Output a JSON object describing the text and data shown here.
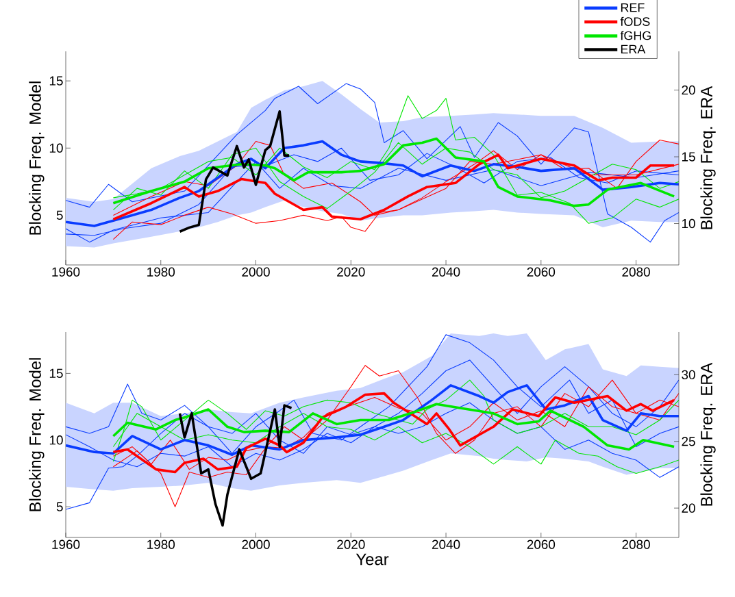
{
  "chart_data": [
    {
      "type": "line",
      "ylabel": "Blocking Freq. Model",
      "y2label": "Blocking Freq. ERA",
      "xlim": [
        1960,
        2089
      ],
      "xticks": [
        1960,
        1980,
        2000,
        2020,
        2040,
        2060,
        2080
      ],
      "ylim": [
        1.3,
        17.2
      ],
      "yticks": [
        5,
        10,
        15
      ],
      "y2lim": [
        6.9,
        22.9
      ],
      "y2ticks": [
        10,
        15,
        20
      ],
      "legend": "top right",
      "series": [
        {
          "name": "REF",
          "color": "#0a3cff",
          "x": [
            1960,
            1966,
            1970,
            1978,
            1984,
            1988,
            1992,
            1996,
            1999,
            2002,
            2006,
            2010,
            2014,
            2018,
            2022,
            2026,
            2031,
            2035,
            2041,
            2046,
            2050,
            2055,
            2060,
            2067,
            2073,
            2079,
            2085,
            2089
          ],
          "values": [
            4.5,
            4.2,
            4.6,
            5.4,
            6.3,
            6.8,
            7.8,
            8.8,
            9.2,
            8.5,
            10.0,
            10.2,
            10.5,
            9.5,
            9.0,
            8.9,
            8.7,
            7.9,
            8.7,
            8.3,
            8.8,
            8.6,
            8.3,
            8.5,
            6.9,
            7.1,
            7.4,
            7.3
          ],
          "upper": [
            6.3,
            6.0,
            6.2,
            8.5,
            9.4,
            9.8,
            10.5,
            11.2,
            13.0,
            13.6,
            14.3,
            14.6,
            15.0,
            14.0,
            12.9,
            11.9,
            12.0,
            12.3,
            12.4,
            12.5,
            12.6,
            12.5,
            12.4,
            12.4,
            11.5,
            10.4,
            10.5,
            10.5
          ],
          "lower": [
            2.7,
            2.6,
            2.9,
            3.4,
            3.8,
            4.1,
            4.5,
            5.0,
            5.2,
            5.6,
            6.1,
            5.6,
            5.3,
            5.1,
            4.6,
            4.8,
            5.0,
            5.0,
            5.2,
            5.3,
            5.4,
            5.2,
            5.1,
            5.0,
            4.1,
            4.6,
            4.5,
            4.5
          ]
        },
        {
          "color": "#0a3cff",
          "x": [
            1960,
            1965,
            1969,
            1974,
            1985,
            1996,
            1998,
            2002,
            2004,
            2009,
            2013,
            2019,
            2022,
            2025,
            2027,
            2031,
            2036,
            2043,
            2046,
            2051,
            2055,
            2060,
            2067,
            2070,
            2074,
            2079,
            2083,
            2086,
            2089
          ],
          "values": [
            6.1,
            5.6,
            7.3,
            6.0,
            6.8,
            11.0,
            11.6,
            12.8,
            13.7,
            14.6,
            13.3,
            14.8,
            14.4,
            13.4,
            10.4,
            11.3,
            9.2,
            11.6,
            9.3,
            11.9,
            10.9,
            8.8,
            11.5,
            11.2,
            5.1,
            4.1,
            3.0,
            4.6,
            5.2
          ]
        },
        {
          "color": "#0a3cff",
          "x": [
            1960,
            1965,
            1970,
            1980,
            1990,
            1996,
            2000,
            2005,
            2010,
            2016,
            2022,
            2030,
            2040,
            2050,
            2060,
            2070,
            2080,
            2089
          ],
          "values": [
            4.0,
            3.0,
            3.9,
            4.8,
            5.2,
            7.5,
            9.0,
            7.0,
            8.5,
            7.2,
            7.0,
            8.5,
            7.6,
            8.4,
            7.2,
            8.2,
            7.8,
            8.3
          ]
        },
        {
          "color": "#0a3cff",
          "x": [
            1960,
            1966,
            1972,
            1980,
            1988,
            1995,
            2003,
            2008,
            2013,
            2018,
            2024,
            2030,
            2036,
            2042,
            2048,
            2055,
            2062,
            2068,
            2074,
            2080,
            2089
          ],
          "values": [
            3.6,
            3.5,
            4.0,
            4.4,
            5.8,
            8.6,
            8.8,
            9.5,
            9.0,
            10.0,
            7.6,
            8.0,
            9.6,
            8.6,
            7.4,
            9.0,
            9.3,
            7.8,
            7.4,
            8.3,
            8.0
          ]
        },
        {
          "color": "#ff0000",
          "x": [
            1970,
            1974,
            1980,
            1985,
            1990,
            1995,
            2000,
            2005,
            2010,
            2015,
            2018,
            2020,
            2023,
            2026,
            2030,
            2035,
            2040,
            2046,
            2050,
            2055,
            2060,
            2065,
            2070,
            2076,
            2080,
            2085,
            2089
          ],
          "values": [
            3.2,
            4.5,
            4.3,
            5.0,
            5.6,
            5.1,
            4.4,
            4.6,
            5.0,
            4.6,
            4.9,
            4.1,
            3.8,
            5.2,
            5.4,
            6.3,
            7.5,
            8.8,
            9.8,
            8.4,
            9.5,
            8.4,
            8.5,
            7.0,
            9.0,
            10.6,
            10.3
          ]
        },
        {
          "color": "#ff0000",
          "x": [
            1970,
            1978,
            1985,
            1990,
            1996,
            2000,
            2003,
            2006,
            2010,
            2016,
            2022,
            2025,
            2030,
            2040,
            2045,
            2050,
            2060,
            2070,
            2080,
            2089
          ],
          "values": [
            5.0,
            6.4,
            7.5,
            7.2,
            8.7,
            10.5,
            10.2,
            8.0,
            7.0,
            7.4,
            6.0,
            5.0,
            5.4,
            7.0,
            9.0,
            8.8,
            9.5,
            8.0,
            8.0,
            8.8
          ]
        },
        {
          "color": "#00e600",
          "x": [
            1970,
            1975,
            1980,
            1985,
            1990,
            1995,
            2000,
            2005,
            2010,
            2015,
            2020,
            2025,
            2028,
            2032,
            2035,
            2038,
            2040,
            2042,
            2046,
            2050,
            2055,
            2060,
            2066,
            2070,
            2075,
            2080,
            2085,
            2089
          ],
          "values": [
            6.3,
            6.6,
            7.0,
            8.0,
            9.0,
            9.3,
            8.0,
            10.0,
            8.6,
            7.8,
            9.0,
            8.4,
            10.0,
            13.9,
            12.2,
            12.8,
            13.7,
            10.6,
            10.8,
            9.5,
            6.5,
            6.7,
            5.9,
            4.4,
            4.8,
            6.2,
            5.6,
            6.2
          ]
        },
        {
          "color": "#00e600",
          "x": [
            1970,
            1975,
            1980,
            1985,
            1990,
            1995,
            2000,
            2005,
            2010,
            2015,
            2020,
            2025,
            2030,
            2035,
            2040,
            2045,
            2050,
            2055,
            2060,
            2065,
            2070,
            2075,
            2080,
            2085,
            2089
          ],
          "values": [
            5.4,
            7.0,
            6.5,
            8.3,
            7.0,
            9.5,
            10.0,
            7.5,
            6.4,
            5.5,
            6.8,
            8.2,
            10.4,
            8.8,
            10.0,
            9.7,
            8.4,
            8.0,
            6.3,
            6.8,
            7.8,
            8.8,
            8.4,
            7.0,
            7.5
          ]
        },
        {
          "name": "fODS",
          "color": "#ff0000",
          "x": [
            1970,
            1978,
            1985,
            1988,
            1992,
            1997,
            2002,
            2004,
            2010,
            2014,
            2016,
            2022,
            2027,
            2032,
            2036,
            2042,
            2047,
            2051,
            2053,
            2060,
            2067,
            2072,
            2075,
            2080,
            2083,
            2088
          ],
          "values": [
            4.7,
            5.9,
            7.1,
            6.4,
            6.8,
            7.7,
            7.4,
            6.6,
            5.4,
            5.6,
            4.9,
            4.7,
            5.4,
            6.4,
            7.1,
            7.4,
            8.8,
            9.5,
            8.5,
            9.2,
            8.7,
            7.6,
            7.8,
            7.8,
            8.7,
            8.7
          ]
        },
        {
          "name": "fGHG",
          "color": "#00e600",
          "x": [
            1970,
            1978,
            1985,
            1990,
            1997,
            2002,
            2004,
            2008,
            2011,
            2018,
            2022,
            2027,
            2031,
            2035,
            2038,
            2042,
            2048,
            2051,
            2055,
            2062,
            2067,
            2070,
            2074,
            2081,
            2088
          ],
          "values": [
            5.9,
            6.8,
            7.5,
            8.5,
            8.8,
            8.7,
            8.5,
            7.6,
            8.2,
            8.2,
            8.3,
            8.8,
            10.2,
            10.4,
            10.7,
            9.3,
            9.0,
            7.1,
            6.4,
            6.1,
            5.7,
            5.8,
            6.9,
            7.4,
            6.4
          ]
        },
        {
          "name": "ERA",
          "color": "#000000",
          "axis": "y2",
          "x": [
            1984,
            1986,
            1988,
            1989.5,
            1991,
            1994,
            1996,
            1997.5,
            1998.5,
            2000,
            2002,
            2003,
            2005,
            2006,
            2007
          ],
          "values": [
            9.4,
            9.7,
            9.9,
            13.3,
            14.2,
            13.6,
            15.8,
            14.2,
            14.8,
            12.9,
            15.5,
            15.8,
            18.4,
            15.1,
            15.1
          ]
        }
      ]
    },
    {
      "type": "line",
      "xlabel": "Year",
      "ylabel": "Blocking Freq. Model",
      "y2label": "Blocking Freq. ERA",
      "xlim": [
        1960,
        2089
      ],
      "xticks": [
        1960,
        1980,
        2000,
        2020,
        2040,
        2060,
        2080
      ],
      "ylim": [
        2.7,
        18.1
      ],
      "yticks": [
        5,
        10,
        15
      ],
      "y2lim": [
        17.8,
        33.2
      ],
      "y2ticks": [
        20,
        25,
        30
      ],
      "series": [
        {
          "color": "#0a3cff",
          "x": [
            1960,
            1966,
            1970,
            1974,
            1980,
            1985,
            1990,
            1995,
            1999,
            2005,
            2010,
            2017,
            2022,
            2027,
            2031,
            2037,
            2041,
            2047,
            2050,
            2053,
            2057,
            2061,
            2065,
            2070,
            2073,
            2078,
            2081,
            2085,
            2089
          ],
          "values": [
            9.6,
            9.1,
            9.0,
            10.3,
            9.3,
            10.0,
            9.6,
            8.9,
            9.6,
            9.3,
            10.0,
            10.2,
            10.4,
            11.0,
            11.5,
            13.0,
            14.1,
            13.3,
            12.8,
            13.6,
            14.1,
            12.3,
            12.6,
            13.3,
            11.5,
            10.7,
            12.0,
            11.8,
            11.8
          ],
          "upper": [
            12.8,
            12.0,
            12.8,
            12.8,
            11.8,
            12.0,
            12.3,
            12.1,
            12.0,
            12.8,
            13.2,
            13.7,
            13.9,
            14.6,
            15.1,
            16.3,
            18.0,
            17.8,
            18.0,
            17.8,
            18.0,
            16.0,
            16.8,
            17.2,
            15.3,
            14.8,
            15.6,
            15.5,
            15.4
          ],
          "lower": [
            6.5,
            6.3,
            6.2,
            6.4,
            6.5,
            6.6,
            6.8,
            6.4,
            6.2,
            6.6,
            6.8,
            7.0,
            6.8,
            7.3,
            7.7,
            8.5,
            9.0,
            8.8,
            8.6,
            8.5,
            8.4,
            8.7,
            8.6,
            8.4,
            8.0,
            7.4,
            7.6,
            7.9,
            7.9
          ]
        },
        {
          "color": "#0a3cff",
          "x": [
            1960,
            1965,
            1969,
            1972,
            1975,
            1980,
            1985,
            1990,
            1995,
            2000,
            2005,
            2008,
            2012,
            2018,
            2022,
            2028,
            2032,
            2036,
            2040,
            2045,
            2050,
            2055,
            2060,
            2066,
            2070,
            2075,
            2080,
            2085,
            2089
          ],
          "values": [
            4.8,
            5.3,
            7.9,
            8.0,
            8.8,
            10.5,
            12.0,
            11.0,
            9.0,
            11.0,
            12.2,
            13.0,
            10.5,
            10.0,
            11.0,
            12.5,
            14.0,
            15.5,
            17.9,
            17.3,
            16.0,
            14.0,
            12.5,
            14.5,
            12.0,
            13.0,
            9.5,
            10.5,
            11.0
          ]
        },
        {
          "color": "#0a3cff",
          "x": [
            1960,
            1965,
            1969,
            1973,
            1976,
            1980,
            1985,
            1990,
            1995,
            2000,
            2005,
            2010,
            2015,
            2020,
            2025,
            2030,
            2035,
            2040,
            2045,
            2050,
            2055,
            2060,
            2065,
            2070,
            2075,
            2080,
            2085,
            2089
          ],
          "values": [
            11.0,
            10.5,
            11.0,
            14.2,
            12.0,
            11.5,
            12.6,
            11.0,
            10.5,
            12.0,
            10.0,
            9.0,
            11.0,
            10.4,
            11.0,
            12.0,
            13.5,
            15.2,
            16.0,
            14.0,
            12.0,
            14.0,
            15.5,
            14.0,
            12.0,
            11.0,
            12.5,
            14.5
          ]
        },
        {
          "color": "#0a3cff",
          "x": [
            1960,
            1965,
            1970,
            1975,
            1980,
            1985,
            1990,
            1995,
            2000,
            2005,
            2010,
            2015,
            2020,
            2025,
            2030,
            2035,
            2040,
            2045,
            2050,
            2055,
            2060,
            2065,
            2070,
            2075,
            2080,
            2085,
            2089
          ],
          "values": [
            10.4,
            9.5,
            8.5,
            8.0,
            9.0,
            8.8,
            9.5,
            8.0,
            9.0,
            8.5,
            9.3,
            10.5,
            9.8,
            11.0,
            10.5,
            11.0,
            12.0,
            12.8,
            11.5,
            10.5,
            11.0,
            9.3,
            10.0,
            9.0,
            8.5,
            7.2,
            8.0
          ]
        },
        {
          "color": "#ff0000",
          "x": [
            1970,
            1975,
            1980,
            1983,
            1986,
            1990,
            1994,
            1998,
            2002,
            2006,
            2010,
            2015,
            2020,
            2023,
            2026,
            2030,
            2034,
            2038,
            2042,
            2046,
            2050,
            2055,
            2060,
            2065,
            2070,
            2075,
            2080,
            2085,
            2089
          ],
          "values": [
            8.0,
            9.2,
            7.5,
            5.0,
            7.6,
            7.2,
            7.6,
            7.4,
            9.4,
            11.0,
            10.0,
            11.5,
            14.0,
            15.6,
            14.8,
            15.2,
            13.2,
            10.5,
            9.0,
            10.0,
            12.0,
            12.5,
            11.0,
            13.5,
            12.5,
            14.5,
            12.0,
            11.5,
            13.5
          ]
        },
        {
          "color": "#ff0000",
          "x": [
            1970,
            1974,
            1978,
            1982,
            1986,
            1990,
            1994,
            1998,
            2002,
            2006,
            2010,
            2015,
            2020,
            2025,
            2030,
            2035,
            2040,
            2045,
            2050,
            2055,
            2060,
            2065,
            2070,
            2075,
            2080,
            2085,
            2089
          ],
          "values": [
            8.8,
            9.5,
            8.2,
            10.0,
            7.8,
            8.7,
            8.5,
            9.2,
            9.5,
            9.4,
            10.2,
            12.0,
            12.6,
            13.2,
            12.4,
            12.0,
            10.0,
            11.0,
            12.8,
            11.5,
            12.2,
            11.0,
            14.0,
            12.5,
            12.0,
            13.0,
            12.5
          ]
        },
        {
          "color": "#00e600",
          "x": [
            1970,
            1972,
            1974,
            1976,
            1980,
            1985,
            1990,
            1994,
            1998,
            2002,
            2006,
            2010,
            2015,
            2020,
            2025,
            2030,
            2033,
            2036,
            2040,
            2045,
            2048,
            2050,
            2055,
            2060,
            2065,
            2070,
            2075,
            2080,
            2085,
            2089
          ],
          "values": [
            8.4,
            10.5,
            13.0,
            12.5,
            10.0,
            11.5,
            13.0,
            12.0,
            10.8,
            12.2,
            11.8,
            12.5,
            13.0,
            12.8,
            12.0,
            11.5,
            11.2,
            12.3,
            13.0,
            14.5,
            13.3,
            11.5,
            10.5,
            11.0,
            12.0,
            11.0,
            11.0,
            10.4,
            11.5,
            13.0
          ]
        },
        {
          "color": "#00e600",
          "x": [
            1970,
            1975,
            1980,
            1985,
            1990,
            1995,
            2000,
            2005,
            2010,
            2015,
            2020,
            2025,
            2030,
            2035,
            2040,
            2045,
            2050,
            2055,
            2060,
            2063,
            2068,
            2072,
            2076,
            2080,
            2085,
            2089
          ],
          "values": [
            9.5,
            12.0,
            11.0,
            10.0,
            10.4,
            10.0,
            9.8,
            11.0,
            12.0,
            11.0,
            10.8,
            10.0,
            11.0,
            9.8,
            10.5,
            9.5,
            8.2,
            9.5,
            8.2,
            10.0,
            9.0,
            8.8,
            8.0,
            7.5,
            8.0,
            8.5
          ]
        },
        {
          "color": "#ff0000",
          "x": [
            1970,
            1973,
            1979,
            1983,
            1985,
            1989,
            1992,
            1996,
            1998,
            2002,
            2005,
            2006.5,
            2010,
            2014,
            2019,
            2023,
            2027,
            2029,
            2032.5,
            2036,
            2038,
            2040.5,
            2043,
            2050,
            2054,
            2059.5,
            2063,
            2067,
            2074,
            2078,
            2081,
            2083.5,
            2088
          ],
          "values": [
            9.1,
            9.3,
            7.8,
            7.6,
            8.3,
            8.6,
            7.8,
            8.0,
            9.4,
            10.1,
            9.6,
            9.1,
            9.8,
            11.7,
            12.5,
            13.4,
            13.5,
            12.8,
            12.0,
            11.2,
            12.0,
            10.9,
            9.6,
            11.0,
            12.3,
            11.8,
            13.2,
            12.8,
            13.3,
            12.2,
            12.7,
            12.2,
            13.0
          ]
        },
        {
          "color": "#00e600",
          "x": [
            1970,
            1973,
            1979,
            1983,
            1985,
            1990,
            1994,
            1997.5,
            2002,
            2007,
            2012,
            2017,
            2022,
            2028,
            2032.5,
            2038,
            2043,
            2050,
            2055,
            2059.5,
            2062,
            2069,
            2074,
            2078.5,
            2081.5,
            2088
          ],
          "values": [
            10.3,
            11.3,
            10.8,
            11.5,
            11.7,
            12.3,
            11.0,
            10.6,
            10.7,
            10.6,
            12.0,
            11.2,
            11.5,
            11.5,
            12.0,
            12.7,
            12.4,
            12.0,
            11.2,
            11.4,
            12.2,
            11.0,
            9.6,
            9.3,
            10.0,
            9.5
          ]
        },
        {
          "color": "#000000",
          "axis": "y2",
          "x": [
            1984,
            1985,
            1986.5,
            1988.5,
            1990,
            1991.5,
            1993,
            1994,
            1996.5,
            1999,
            2001,
            2004,
            2005,
            2006,
            2007.5
          ],
          "values": [
            27.1,
            25.3,
            27.1,
            22.6,
            22.9,
            20.3,
            18.7,
            21.0,
            24.4,
            22.2,
            22.6,
            27.4,
            24.6,
            27.7,
            27.5
          ]
        }
      ]
    }
  ]
}
